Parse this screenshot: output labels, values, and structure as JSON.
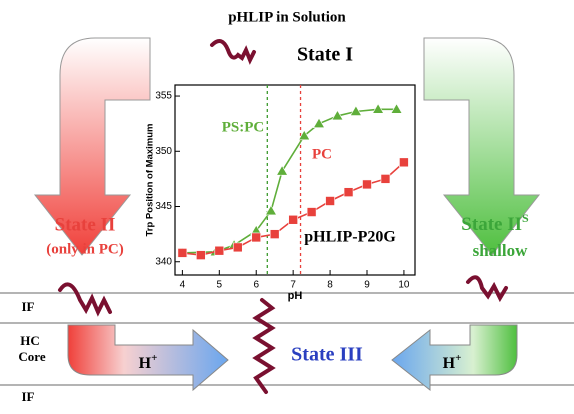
{
  "header": {
    "title": "pHLIP in Solution",
    "state_1": "State I"
  },
  "left": {
    "state": "State II",
    "note": "(only in PC)"
  },
  "right": {
    "state": "State II",
    "superscript": "S",
    "note": "shallow"
  },
  "membrane": {
    "top_layer": "IF",
    "core": [
      "HC",
      "Core"
    ],
    "bottom_layer": "IF"
  },
  "proton": {
    "symbol": "H",
    "charge": "+"
  },
  "state_3": "State III",
  "chart_data": {
    "type": "scatter",
    "ylabel": "Trp Position of Maximum",
    "xlabel": "pH",
    "annotation": "pHLIP-P20G",
    "xlim": [
      3.8,
      10.3
    ],
    "xticks": [
      4,
      5,
      6,
      7,
      8,
      9,
      10
    ],
    "ylim": [
      338.8,
      356
    ],
    "yticks": [
      340,
      345,
      350,
      355
    ],
    "series": [
      {
        "name": "PS:PC",
        "color": "#5fae3a",
        "marker": "triangle",
        "x": [
          4,
          4.9,
          5.4,
          6,
          6.4,
          6.7,
          7.3,
          7.7,
          8.2,
          8.7,
          9.3,
          9.8
        ],
        "values": [
          340.8,
          340.9,
          341.5,
          342.8,
          344.6,
          348.2,
          351.4,
          352.5,
          353.2,
          353.6,
          353.8,
          353.8
        ]
      },
      {
        "name": "PC",
        "color": "#e8413c",
        "marker": "square",
        "x": [
          4,
          4.5,
          5,
          5.5,
          6,
          6.5,
          7,
          7.5,
          8,
          8.5,
          9,
          9.5,
          10
        ],
        "values": [
          340.8,
          340.6,
          341,
          341.3,
          342.2,
          342.5,
          343.8,
          344.5,
          345.5,
          346.3,
          347,
          347.5,
          349
        ]
      }
    ],
    "vlines": [
      {
        "value": 6.3,
        "color": "#3c9a2e"
      },
      {
        "value": 7.2,
        "color": "#e8413c"
      }
    ]
  }
}
